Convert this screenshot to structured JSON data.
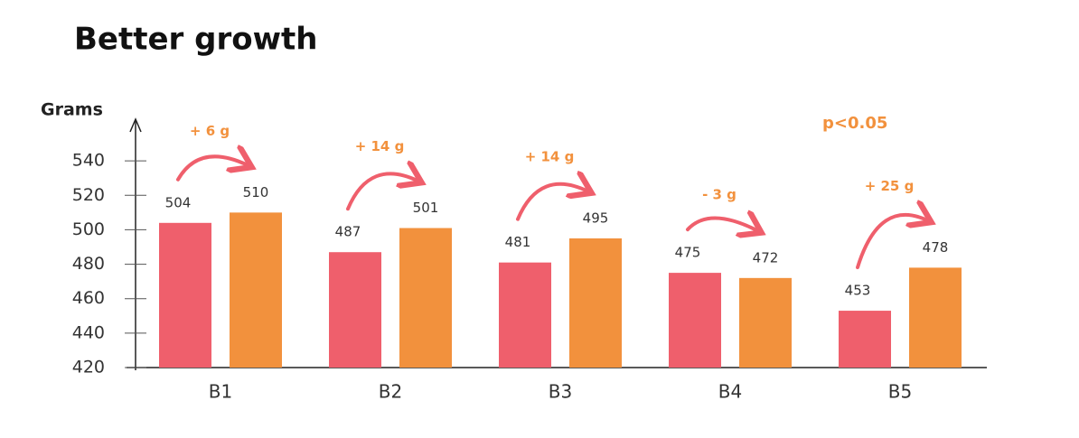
{
  "chart_data": {
    "type": "bar",
    "title": "Better growth",
    "y_label": "Grams",
    "categories": [
      "B1",
      "B2",
      "B3",
      "B4",
      "B5"
    ],
    "series": [
      {
        "color": "#ef5f6c",
        "values": [
          504,
          487,
          481,
          475,
          453
        ]
      },
      {
        "color": "#f2913d",
        "values": [
          510,
          501,
          495,
          472,
          478
        ]
      }
    ],
    "annotations": [
      "+ 6 g",
      "+ 14 g",
      "+ 14 g",
      "- 3 g",
      "+ 25 g"
    ],
    "significance": "p<0.05",
    "ylim": [
      420,
      560
    ],
    "yticks": [
      420,
      440,
      460,
      480,
      500,
      520,
      540
    ],
    "grid": false
  }
}
